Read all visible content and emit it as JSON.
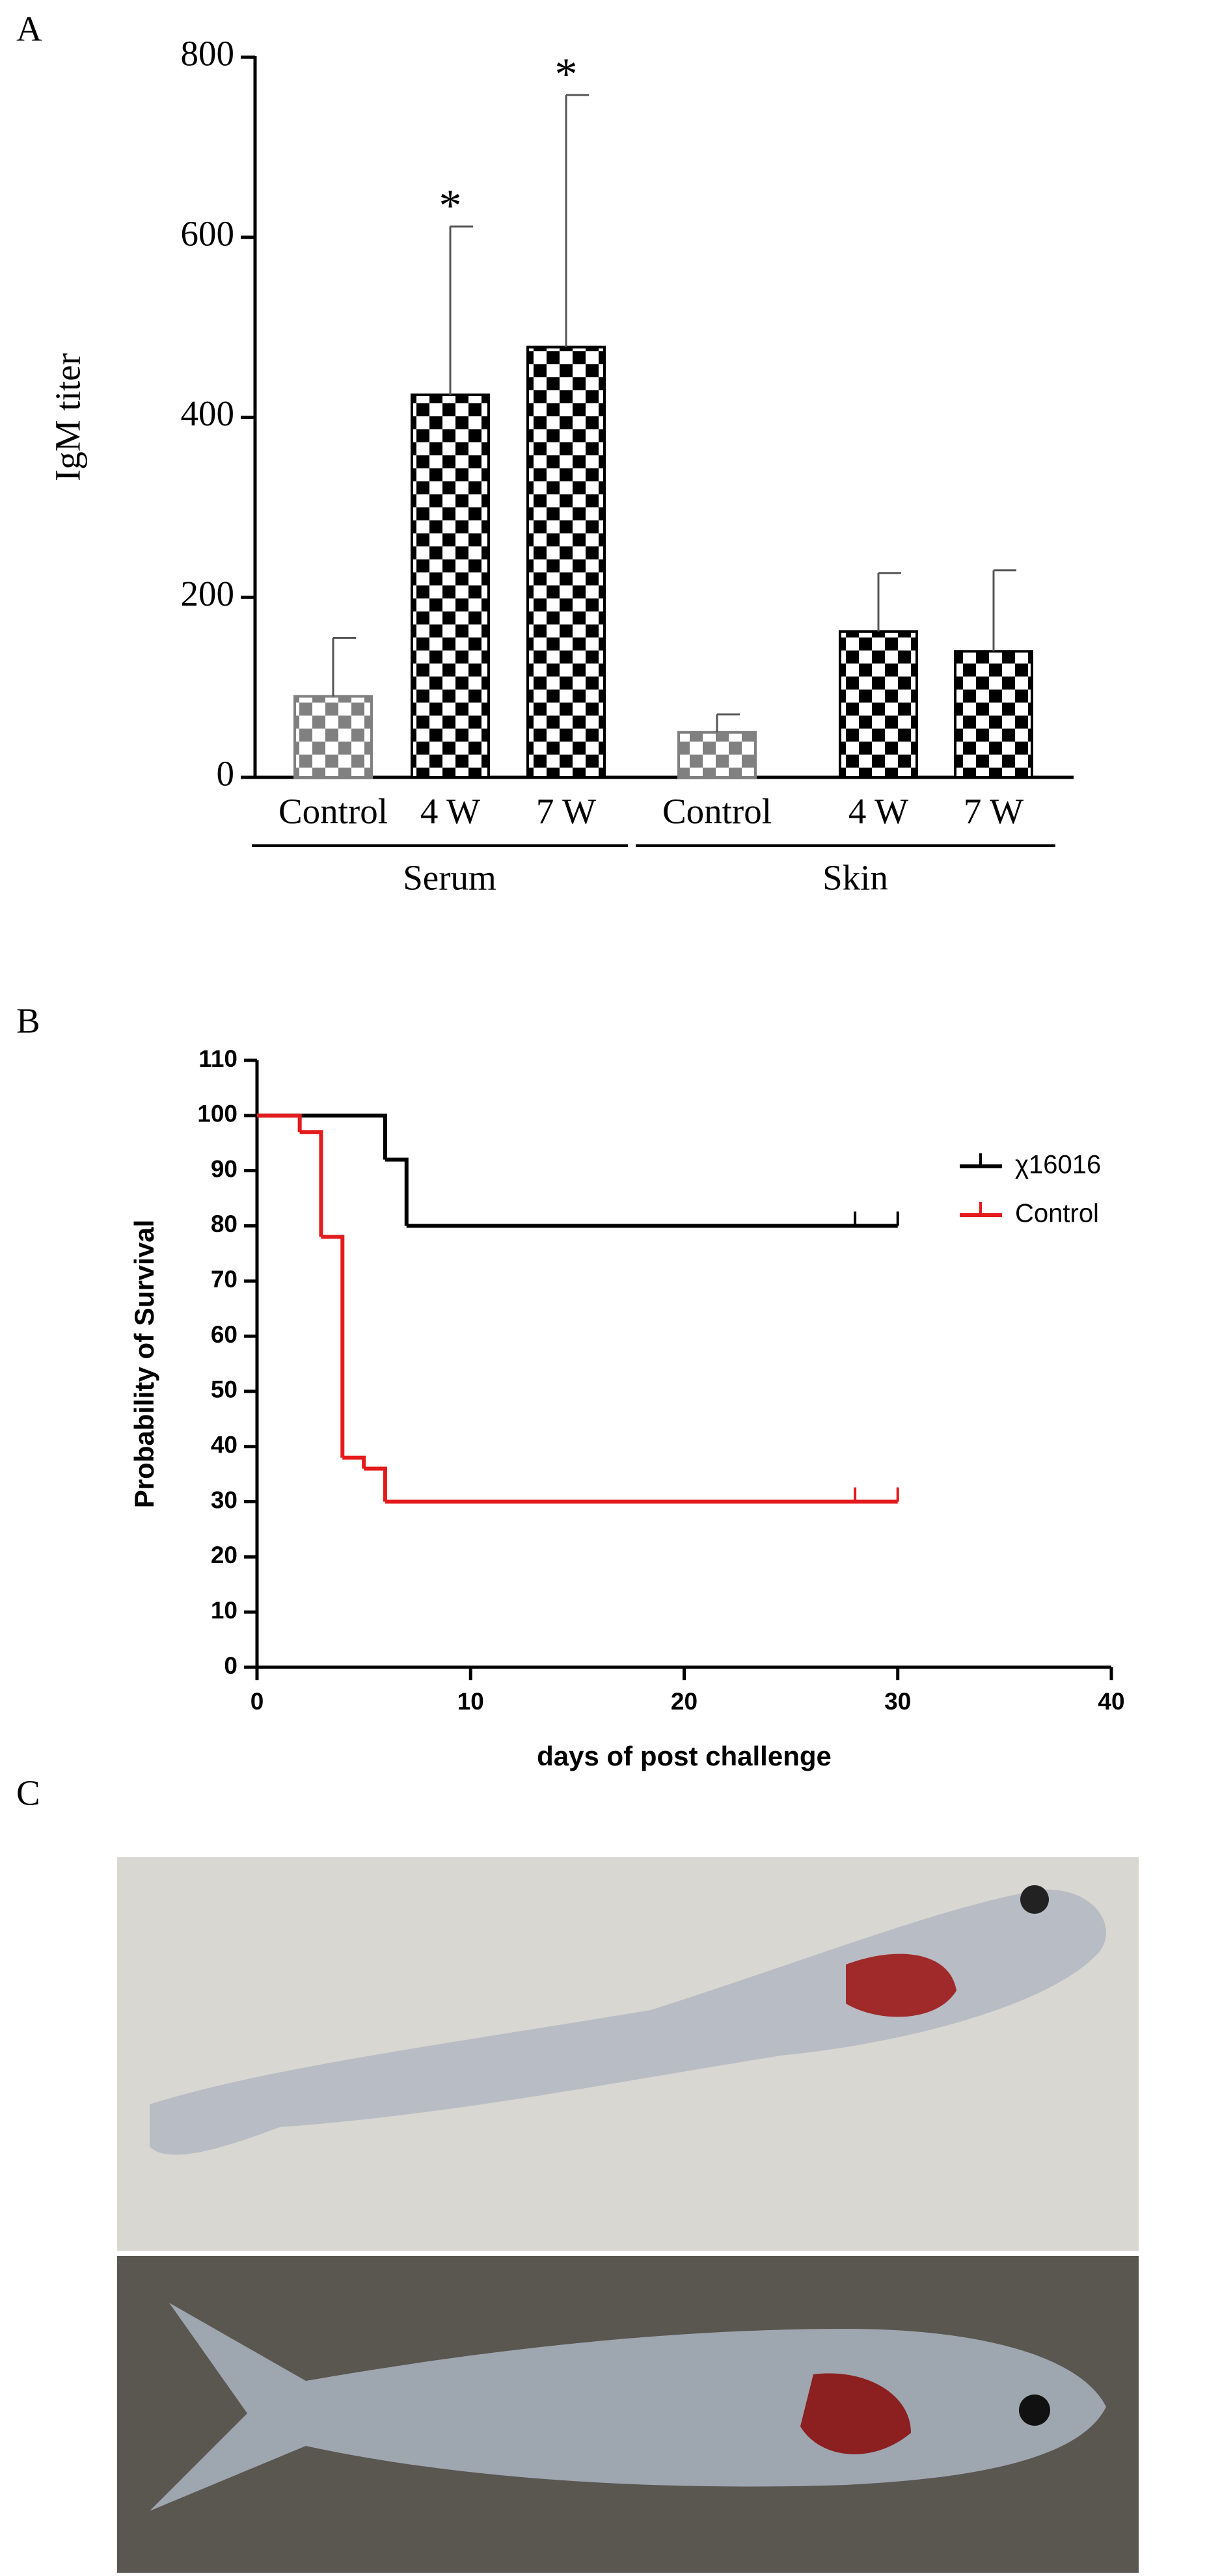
{
  "chart_data": [
    {
      "type": "bar",
      "panel": "A",
      "y_label": "IgM titer",
      "ylim": [
        0,
        800
      ],
      "yticks": [
        0,
        200,
        400,
        600,
        800
      ],
      "groups": [
        {
          "name": "Serum",
          "categories": [
            "Control",
            "4 W",
            "7 W"
          ],
          "values": [
            90,
            425,
            478
          ],
          "errors": [
            65,
            187,
            280
          ],
          "significance": [
            null,
            "*",
            "*"
          ],
          "colors": [
            "#808080",
            "#000000",
            "#000000"
          ]
        },
        {
          "name": "Skin",
          "categories": [
            "Control",
            "4 W",
            "7 W"
          ],
          "values": [
            50,
            162,
            140
          ],
          "errors": [
            20,
            65,
            90
          ],
          "significance": [
            null,
            null,
            null
          ],
          "colors": [
            "#808080",
            "#000000",
            "#000000"
          ]
        }
      ]
    },
    {
      "type": "step",
      "panel": "B",
      "x_label": "days of post challenge",
      "y_label": "Probability of Survival",
      "xlim": [
        0,
        40
      ],
      "xticks": [
        0,
        10,
        20,
        30,
        40
      ],
      "ylim": [
        0,
        110
      ],
      "yticks": [
        0,
        10,
        20,
        30,
        40,
        50,
        60,
        70,
        80,
        90,
        100,
        110
      ],
      "legend_position": "right",
      "series": [
        {
          "name": "χ16016",
          "color": "#000000",
          "x": [
            0,
            6,
            7,
            30
          ],
          "values": [
            100,
            92,
            80,
            80
          ],
          "censored": [
            28,
            30
          ]
        },
        {
          "name": "Control",
          "color": "#e41a1c",
          "x": [
            0,
            2,
            3,
            4,
            5,
            6,
            30
          ],
          "values": [
            100,
            97,
            78,
            38,
            36,
            30,
            30
          ],
          "censored": [
            28,
            30
          ]
        }
      ]
    }
  ],
  "panel_c": {
    "label": "C"
  }
}
